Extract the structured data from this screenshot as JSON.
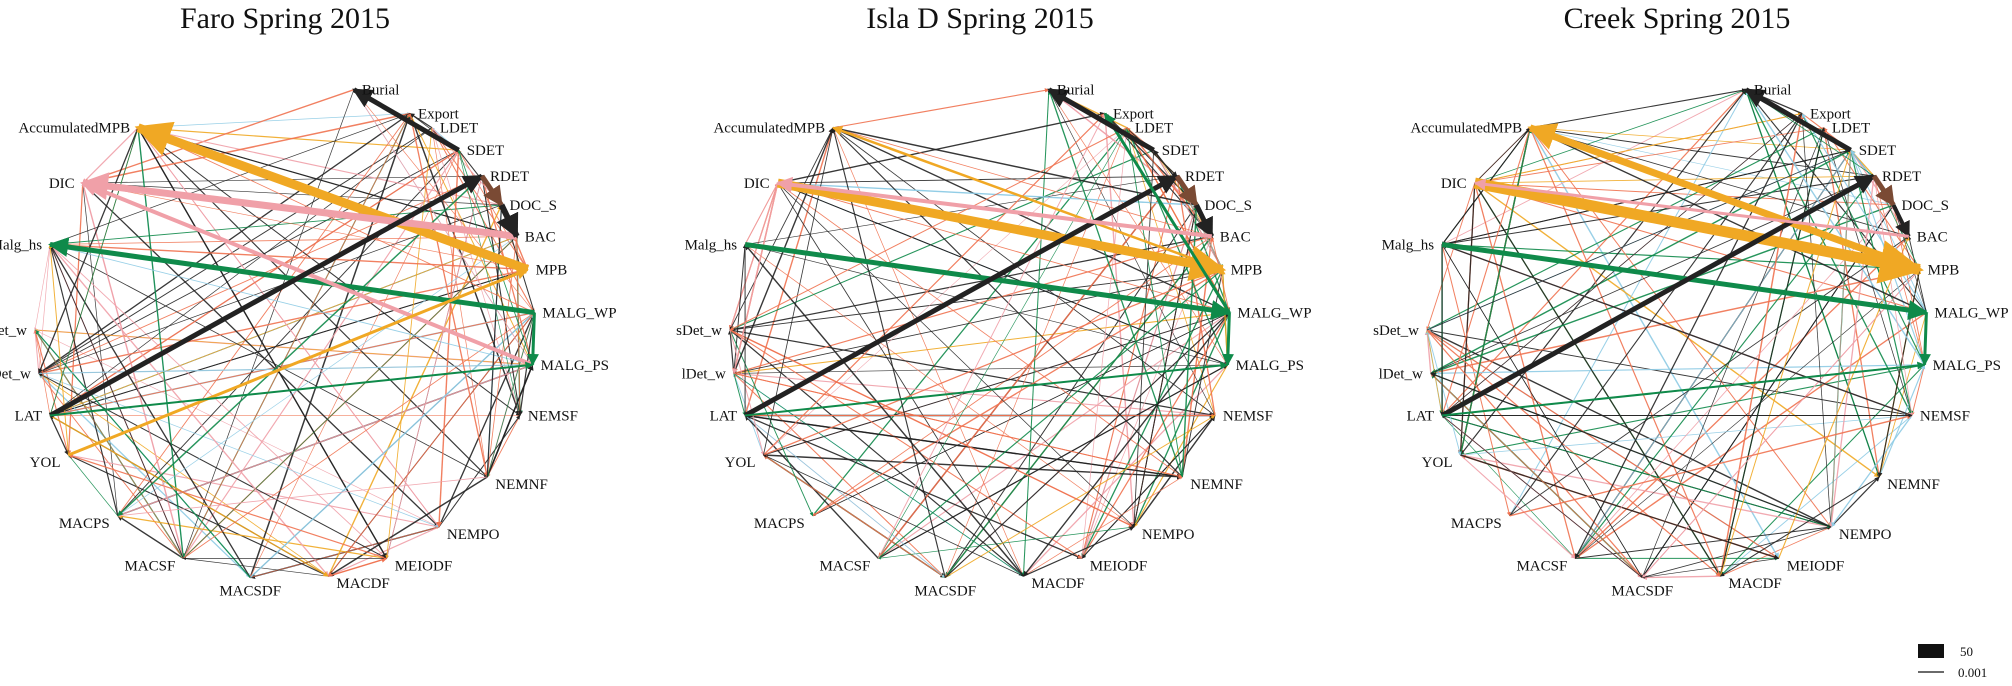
{
  "panels": [
    {
      "title": "Faro Spring 2015",
      "edges": [
        {
          "from": "MPB",
          "to": "AccumulatedMPB",
          "w": 9,
          "c": "orange"
        },
        {
          "from": "MALG_WP",
          "to": "Malg_hs",
          "w": 5,
          "c": "green"
        },
        {
          "from": "BAC",
          "to": "DIC",
          "w": 7,
          "c": "pink"
        },
        {
          "from": "MALG_PS",
          "to": "DIC",
          "w": 4,
          "c": "pink"
        },
        {
          "from": "LAT",
          "to": "RDET",
          "w": 5,
          "c": "black"
        },
        {
          "from": "SDET",
          "to": "Burial",
          "w": 5,
          "c": "black"
        },
        {
          "from": "RDET",
          "to": "DOC_S",
          "w": 5,
          "c": "brown"
        },
        {
          "from": "DOC_S",
          "to": "BAC",
          "w": 6,
          "c": "black"
        },
        {
          "from": "YOL",
          "to": "MPB",
          "w": 3,
          "c": "orange"
        },
        {
          "from": "LAT",
          "to": "MALG_PS",
          "w": 2,
          "c": "green"
        },
        {
          "from": "MALG_WP",
          "to": "MALG_PS",
          "w": 3,
          "c": "green"
        }
      ]
    },
    {
      "title": "Isla D Spring 2015",
      "edges": [
        {
          "from": "DIC",
          "to": "MPB",
          "w": 9,
          "c": "orange"
        },
        {
          "from": "MPB",
          "to": "AccumulatedMPB",
          "w": 2.5,
          "c": "orange"
        },
        {
          "from": "Malg_hs",
          "to": "MALG_WP",
          "w": 5,
          "c": "green"
        },
        {
          "from": "LAT",
          "to": "RDET",
          "w": 5,
          "c": "black"
        },
        {
          "from": "MALG_WP",
          "to": "Export",
          "w": 3,
          "c": "green"
        },
        {
          "from": "SDET",
          "to": "Burial",
          "w": 5,
          "c": "black"
        },
        {
          "from": "RDET",
          "to": "DOC_S",
          "w": 5,
          "c": "brown"
        },
        {
          "from": "DOC_S",
          "to": "BAC",
          "w": 5,
          "c": "black"
        },
        {
          "from": "BAC",
          "to": "DIC",
          "w": 4,
          "c": "pink"
        },
        {
          "from": "MALG_WP",
          "to": "MALG_PS",
          "w": 3,
          "c": "green"
        },
        {
          "from": "LAT",
          "to": "MALG_PS",
          "w": 2,
          "c": "green"
        }
      ]
    },
    {
      "title": "Creek Spring 2015",
      "edges": [
        {
          "from": "DIC",
          "to": "MPB",
          "w": 11,
          "c": "orange"
        },
        {
          "from": "MPB",
          "to": "AccumulatedMPB",
          "w": 7,
          "c": "orange"
        },
        {
          "from": "Malg_hs",
          "to": "MALG_WP",
          "w": 5,
          "c": "green"
        },
        {
          "from": "LAT",
          "to": "RDET",
          "w": 5,
          "c": "black"
        },
        {
          "from": "SDET",
          "to": "Burial",
          "w": 5,
          "c": "black"
        },
        {
          "from": "RDET",
          "to": "DOC_S",
          "w": 5,
          "c": "brown"
        },
        {
          "from": "DOC_S",
          "to": "BAC",
          "w": 4,
          "c": "black"
        },
        {
          "from": "BAC",
          "to": "DIC",
          "w": 3,
          "c": "pink"
        },
        {
          "from": "MALG_WP",
          "to": "MALG_PS",
          "w": 3,
          "c": "green"
        },
        {
          "from": "LAT",
          "to": "MALG_PS",
          "w": 2,
          "c": "green"
        }
      ]
    }
  ],
  "nodes": [
    {
      "name": "Export",
      "color": "black"
    },
    {
      "name": "LDET",
      "color": "lightblue"
    },
    {
      "name": "SDET",
      "color": "lightblue"
    },
    {
      "name": "RDET",
      "color": "black"
    },
    {
      "name": "DOC_S",
      "color": "brown"
    },
    {
      "name": "BAC",
      "color": "pink"
    },
    {
      "name": "MPB",
      "color": "orange"
    },
    {
      "name": "MALG_WP",
      "color": "green"
    },
    {
      "name": "MALG_PS",
      "color": "green"
    },
    {
      "name": "NEMSF",
      "color": "coral"
    },
    {
      "name": "NEMNF",
      "color": "coral"
    },
    {
      "name": "NEMPO",
      "color": "coral"
    },
    {
      "name": "MEIODF",
      "color": "coral"
    },
    {
      "name": "MACDF",
      "color": "coral"
    },
    {
      "name": "MACSDF",
      "color": "coral"
    },
    {
      "name": "MACSF",
      "color": "coral"
    },
    {
      "name": "MACPS",
      "color": "coral"
    },
    {
      "name": "YOL",
      "color": "lightblue"
    },
    {
      "name": "LAT",
      "color": "lightblue"
    },
    {
      "name": "lDet_w",
      "color": "lightblue"
    },
    {
      "name": "sDet_w",
      "color": "lightblue"
    },
    {
      "name": "Malg_hs",
      "color": "green"
    },
    {
      "name": "DIC",
      "color": "pink"
    },
    {
      "name": "AccumulatedMPB",
      "color": "orange"
    },
    {
      "name": "Burial",
      "color": "black"
    }
  ],
  "legend": {
    "max_label": "50",
    "min_label": "0.001"
  },
  "colors": {
    "black": "#222222",
    "orange": "#f0a824",
    "green": "#0f8a4a",
    "pink": "#f0a0a8",
    "lightblue": "#8ecbe4",
    "coral": "#f07250",
    "brown": "#7a4a34"
  }
}
